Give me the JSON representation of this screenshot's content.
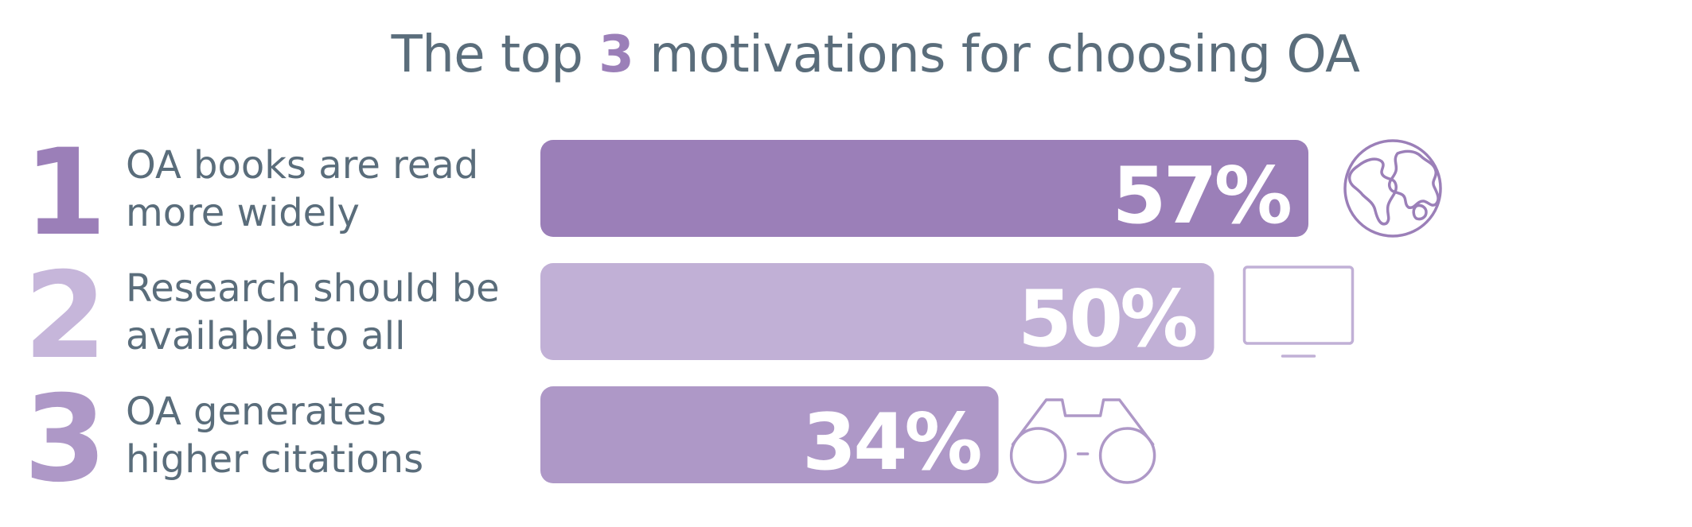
{
  "title": {
    "prefix": "The top ",
    "highlight": "3",
    "suffix": " motivations for choosing OA"
  },
  "colors": {
    "text": "#5a6d7b",
    "accent": "#9b7fb8",
    "white": "#ffffff"
  },
  "chart_data": {
    "type": "bar",
    "orientation": "horizontal",
    "title": "The top 3 motivations for choosing OA",
    "unit": "%",
    "bars": [
      {
        "rank": "1",
        "label_lines": [
          "OA books are read",
          "more widely"
        ],
        "value": 57,
        "value_label": "57%",
        "color": "#9b7fb8",
        "rank_color": "#9b7fb8",
        "icon": "globe-icon"
      },
      {
        "rank": "2",
        "label_lines": [
          "Research should be",
          "available to all"
        ],
        "value": 50,
        "value_label": "50%",
        "color": "#c1b0d6",
        "rank_color": "#c6b6da",
        "icon": "monitor-icon"
      },
      {
        "rank": "3",
        "label_lines": [
          "OA generates",
          "higher citations"
        ],
        "value": 34,
        "value_label": "34%",
        "color": "#ae98c7",
        "rank_color": "#ae98c7",
        "icon": "glasses-icon"
      }
    ]
  }
}
